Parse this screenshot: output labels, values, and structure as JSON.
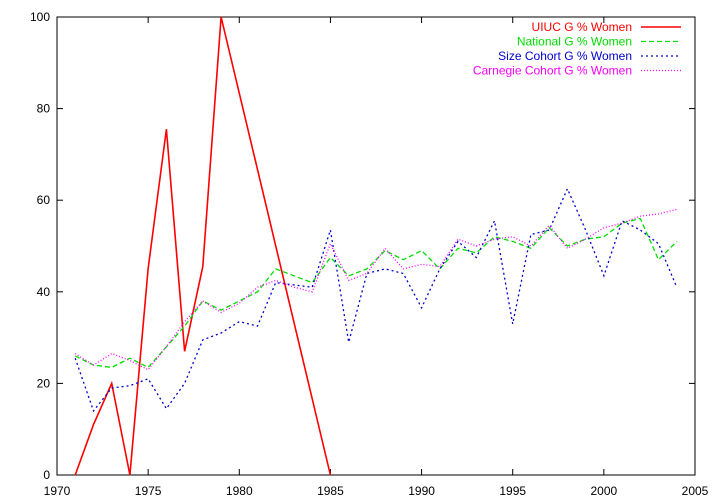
{
  "chart_data": {
    "type": "line",
    "title": "",
    "xlabel": "",
    "ylabel": "",
    "xlim": [
      1970,
      2005
    ],
    "ylim": [
      0,
      100
    ],
    "x_ticks": [
      1970,
      1975,
      1980,
      1985,
      1990,
      1995,
      2000,
      2005
    ],
    "y_ticks": [
      0,
      20,
      40,
      60,
      80,
      100
    ],
    "x_tick_labels": [
      "1970",
      "1975",
      "1980",
      "1985",
      "1990",
      "1995",
      "2000",
      "2005"
    ],
    "y_tick_labels": [
      "0",
      "20",
      "40",
      "60",
      "80",
      "100"
    ],
    "grid": false,
    "legend_position": "top-right",
    "series": [
      {
        "name": "UIUC G % Women",
        "color": "#ff0000",
        "dash": "solid",
        "points": [
          [
            1971,
            0
          ],
          [
            1972,
            11
          ],
          [
            1973,
            20
          ],
          [
            1974,
            0
          ],
          [
            1975,
            45
          ],
          [
            1976,
            75.5
          ],
          [
            1977,
            27
          ],
          [
            1978,
            45.5
          ],
          [
            1979,
            100
          ],
          [
            1985,
            0
          ]
        ]
      },
      {
        "name": "National G % Women",
        "color": "#00dd00",
        "dash": "dashed",
        "points": [
          [
            1971,
            26
          ],
          [
            1972,
            24
          ],
          [
            1973,
            23.5
          ],
          [
            1974,
            25.5
          ],
          [
            1975,
            23.5
          ],
          [
            1976,
            28
          ],
          [
            1977,
            32.5
          ],
          [
            1978,
            38
          ],
          [
            1979,
            36
          ],
          [
            1980,
            38
          ],
          [
            1981,
            40
          ],
          [
            1982,
            45
          ],
          [
            1983,
            43.5
          ],
          [
            1984,
            42
          ],
          [
            1985,
            47.5
          ],
          [
            1986,
            43.5
          ],
          [
            1987,
            45
          ],
          [
            1988,
            49
          ],
          [
            1989,
            47
          ],
          [
            1990,
            49
          ],
          [
            1991,
            45
          ],
          [
            1992,
            49.5
          ],
          [
            1993,
            48.5
          ],
          [
            1994,
            52
          ],
          [
            1995,
            51
          ],
          [
            1996,
            49.5
          ],
          [
            1997,
            54
          ],
          [
            1998,
            50
          ],
          [
            1999,
            51.5
          ],
          [
            2000,
            52
          ],
          [
            2001,
            55
          ],
          [
            2002,
            56
          ],
          [
            2003,
            47
          ],
          [
            2004,
            51
          ]
        ]
      },
      {
        "name": "Size Cohort G % Women",
        "color": "#0000cc",
        "dash": "dotted",
        "points": [
          [
            1971,
            25.5
          ],
          [
            1972,
            14
          ],
          [
            1973,
            19
          ],
          [
            1974,
            19.5
          ],
          [
            1975,
            21
          ],
          [
            1976,
            14.5
          ],
          [
            1977,
            20
          ],
          [
            1978,
            29.5
          ],
          [
            1979,
            31
          ],
          [
            1980,
            33.5
          ],
          [
            1981,
            32.5
          ],
          [
            1982,
            42
          ],
          [
            1983,
            41.5
          ],
          [
            1984,
            41
          ],
          [
            1985,
            53.5
          ],
          [
            1986,
            29
          ],
          [
            1987,
            44
          ],
          [
            1988,
            45
          ],
          [
            1989,
            44
          ],
          [
            1990,
            36.5
          ],
          [
            1991,
            45
          ],
          [
            1992,
            51
          ],
          [
            1993,
            47.5
          ],
          [
            1994,
            55.5
          ],
          [
            1995,
            33
          ],
          [
            1996,
            52.5
          ],
          [
            1997,
            53.5
          ],
          [
            1998,
            62.5
          ],
          [
            1999,
            53.5
          ],
          [
            2000,
            43.5
          ],
          [
            2001,
            55.5
          ],
          [
            2002,
            53.5
          ],
          [
            2003,
            50.5
          ],
          [
            2004,
            41
          ]
        ]
      },
      {
        "name": "Carnegie Cohort G % Women",
        "color": "#ff00ff",
        "dash": "fine-dotted",
        "points": [
          [
            1971,
            26.5
          ],
          [
            1972,
            24
          ],
          [
            1973,
            26.5
          ],
          [
            1974,
            25
          ],
          [
            1975,
            23
          ],
          [
            1976,
            28
          ],
          [
            1977,
            33.5
          ],
          [
            1978,
            38
          ],
          [
            1979,
            35.5
          ],
          [
            1980,
            37.5
          ],
          [
            1981,
            41
          ],
          [
            1982,
            42.5
          ],
          [
            1983,
            41
          ],
          [
            1984,
            40
          ],
          [
            1985,
            50.5
          ],
          [
            1986,
            42.5
          ],
          [
            1987,
            44
          ],
          [
            1988,
            49.5
          ],
          [
            1989,
            45
          ],
          [
            1990,
            46
          ],
          [
            1991,
            45.5
          ],
          [
            1992,
            51.5
          ],
          [
            1993,
            50
          ],
          [
            1994,
            51.5
          ],
          [
            1995,
            52
          ],
          [
            1996,
            50
          ],
          [
            1997,
            54.5
          ],
          [
            1998,
            49.5
          ],
          [
            1999,
            51.5
          ],
          [
            2000,
            54
          ],
          [
            2001,
            55
          ],
          [
            2002,
            56.5
          ],
          [
            2003,
            57
          ],
          [
            2004,
            58
          ]
        ]
      }
    ]
  }
}
